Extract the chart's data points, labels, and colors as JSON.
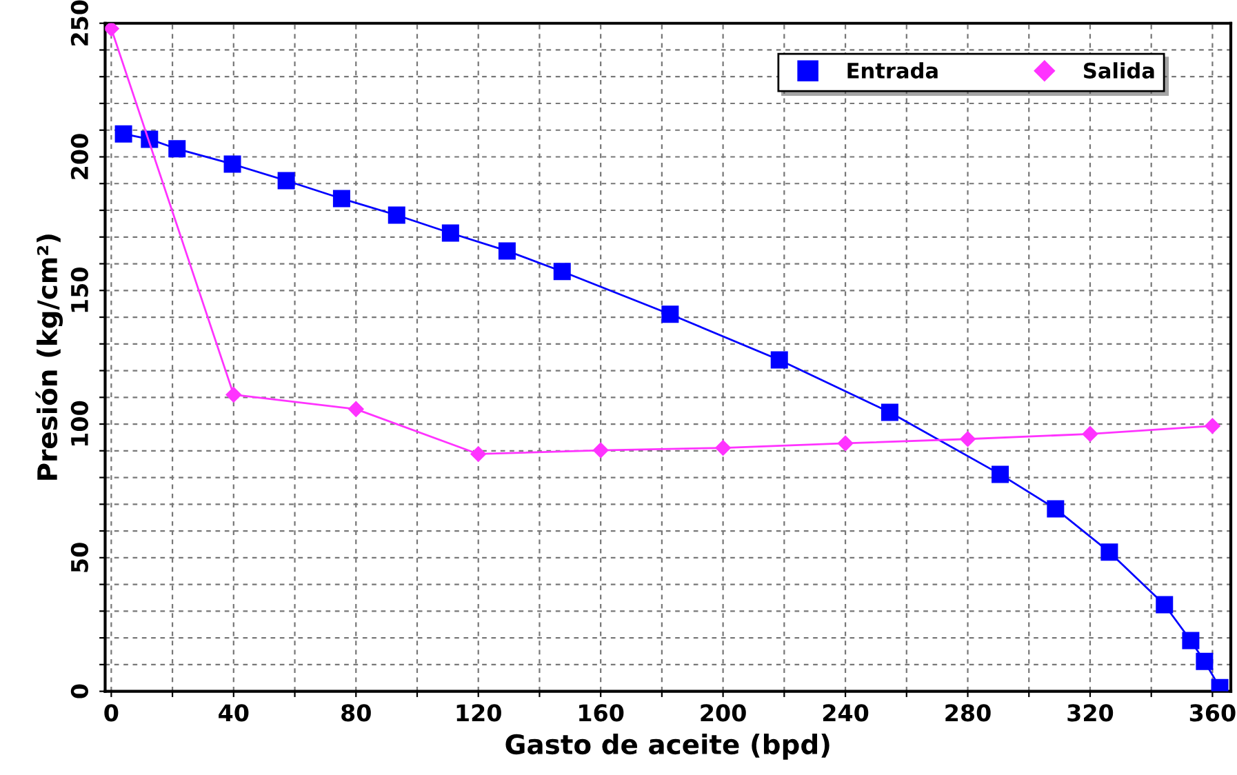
{
  "chart_data": {
    "type": "line",
    "xlabel": "Gasto de aceite (bpd)",
    "ylabel": "Presión (kg/cm²)",
    "xlim": [
      -2,
      366
    ],
    "ylim": [
      0,
      250
    ],
    "xticks": [
      0,
      {
        "value": 20,
        "label": null
      },
      40,
      {
        "value": 60,
        "label": null
      },
      80,
      {
        "value": 100,
        "label": null
      },
      120,
      {
        "value": 140,
        "label": null
      },
      160,
      {
        "value": 180,
        "label": null
      },
      200,
      {
        "value": 220,
        "label": null
      },
      240,
      {
        "value": 260,
        "label": null
      },
      280,
      {
        "value": 300,
        "label": null
      },
      320,
      {
        "value": 340,
        "label": null
      },
      360
    ],
    "yticks": [
      0,
      {
        "value": 10,
        "label": null
      },
      {
        "value": 20,
        "label": null
      },
      {
        "value": 30,
        "label": null
      },
      {
        "value": 40,
        "label": null
      },
      50,
      {
        "value": 60,
        "label": null
      },
      {
        "value": 70,
        "label": null
      },
      {
        "value": 80,
        "label": null
      },
      {
        "value": 90,
        "label": null
      },
      100,
      {
        "value": 110,
        "label": null
      },
      {
        "value": 120,
        "label": null
      },
      {
        "value": 130,
        "label": null
      },
      {
        "value": 140,
        "label": null
      },
      150,
      {
        "value": 160,
        "label": null
      },
      {
        "value": 170,
        "label": null
      },
      {
        "value": 180,
        "label": null
      },
      {
        "value": 190,
        "label": null
      },
      200,
      {
        "value": 210,
        "label": null
      },
      {
        "value": 220,
        "label": null
      },
      {
        "value": 230,
        "label": null
      },
      {
        "value": 240,
        "label": null
      },
      250
    ],
    "grid": true,
    "legend": "top right",
    "series": [
      {
        "name": "Entrada",
        "color": "#0000ff",
        "marker": "square",
        "x": [
          4,
          12.5,
          21.5,
          39.6,
          57.2,
          75.3,
          93.3,
          110.9,
          129.4,
          147.4,
          182.7,
          218.4,
          254.5,
          290.6,
          308.7,
          326.3,
          344.3,
          352.9,
          357.4,
          362.4
        ],
        "values": [
          208.6,
          206.6,
          203,
          197.3,
          191.1,
          184.4,
          178.2,
          171.5,
          164.8,
          157.1,
          141.1,
          124,
          104.4,
          81.2,
          68.3,
          52.1,
          32.4,
          19,
          11.2,
          1.4
        ]
      },
      {
        "name": "Salida",
        "color": "#ff33ff",
        "marker": "diamond",
        "x": [
          0,
          40,
          80,
          120,
          160,
          200,
          240,
          280,
          320,
          360
        ],
        "values": [
          248,
          111,
          105.6,
          88.8,
          90.2,
          91.1,
          92.8,
          94.4,
          96.3,
          99.3
        ]
      }
    ]
  }
}
